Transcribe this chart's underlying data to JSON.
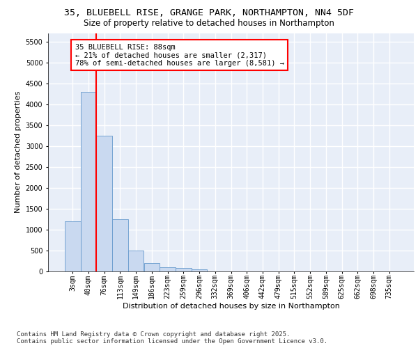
{
  "title_line1": "35, BLUEBELL RISE, GRANGE PARK, NORTHAMPTON, NN4 5DF",
  "title_line2": "Size of property relative to detached houses in Northampton",
  "xlabel": "Distribution of detached houses by size in Northampton",
  "ylabel": "Number of detached properties",
  "footer_line1": "Contains HM Land Registry data © Crown copyright and database right 2025.",
  "footer_line2": "Contains public sector information licensed under the Open Government Licence v3.0.",
  "categories": [
    "3sqm",
    "40sqm",
    "76sqm",
    "113sqm",
    "149sqm",
    "186sqm",
    "223sqm",
    "259sqm",
    "296sqm",
    "332sqm",
    "369sqm",
    "406sqm",
    "442sqm",
    "479sqm",
    "515sqm",
    "552sqm",
    "589sqm",
    "625sqm",
    "662sqm",
    "698sqm",
    "735sqm"
  ],
  "values": [
    1200,
    4300,
    3250,
    1250,
    500,
    200,
    100,
    75,
    50,
    0,
    0,
    0,
    0,
    0,
    0,
    0,
    0,
    0,
    0,
    0,
    0
  ],
  "bar_color": "#c9d9f0",
  "bar_edge_color": "#6699cc",
  "vline_color": "red",
  "annotation_text": "35 BLUEBELL RISE: 88sqm\n← 21% of detached houses are smaller (2,317)\n78% of semi-detached houses are larger (8,581) →",
  "annotation_box_color": "white",
  "annotation_box_edge_color": "red",
  "ylim": [
    0,
    5700
  ],
  "yticks": [
    0,
    500,
    1000,
    1500,
    2000,
    2500,
    3000,
    3500,
    4000,
    4500,
    5000,
    5500
  ],
  "background_color": "#e8eef8",
  "grid_color": "white",
  "title_fontsize": 9.5,
  "subtitle_fontsize": 8.5,
  "axis_label_fontsize": 8,
  "tick_fontsize": 7,
  "footer_fontsize": 6.5,
  "annotation_fontsize": 7.5
}
